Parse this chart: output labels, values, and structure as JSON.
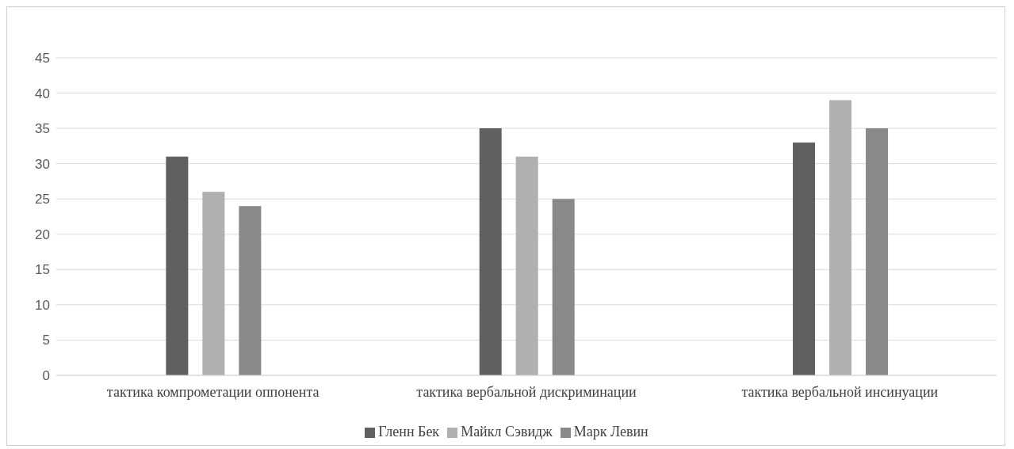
{
  "chart_data": {
    "type": "bar",
    "categories": [
      "тактика компрометации оппонента",
      "тактика вербальной дискриминации",
      "тактика вербальной инсинуации"
    ],
    "series": [
      {
        "name": "Гленн Бек",
        "color": "#606060",
        "values": [
          31,
          35,
          33
        ]
      },
      {
        "name": "Майкл Сэвидж",
        "color": "#b0b0b0",
        "values": [
          26,
          31,
          39
        ]
      },
      {
        "name": "Марк Левин",
        "color": "#898989",
        "values": [
          24,
          25,
          35
        ]
      }
    ],
    "ylim": [
      0,
      45
    ],
    "yticks": [
      0,
      5,
      10,
      15,
      20,
      25,
      30,
      35,
      40,
      45
    ],
    "grid": "y",
    "legend": "bottom"
  }
}
